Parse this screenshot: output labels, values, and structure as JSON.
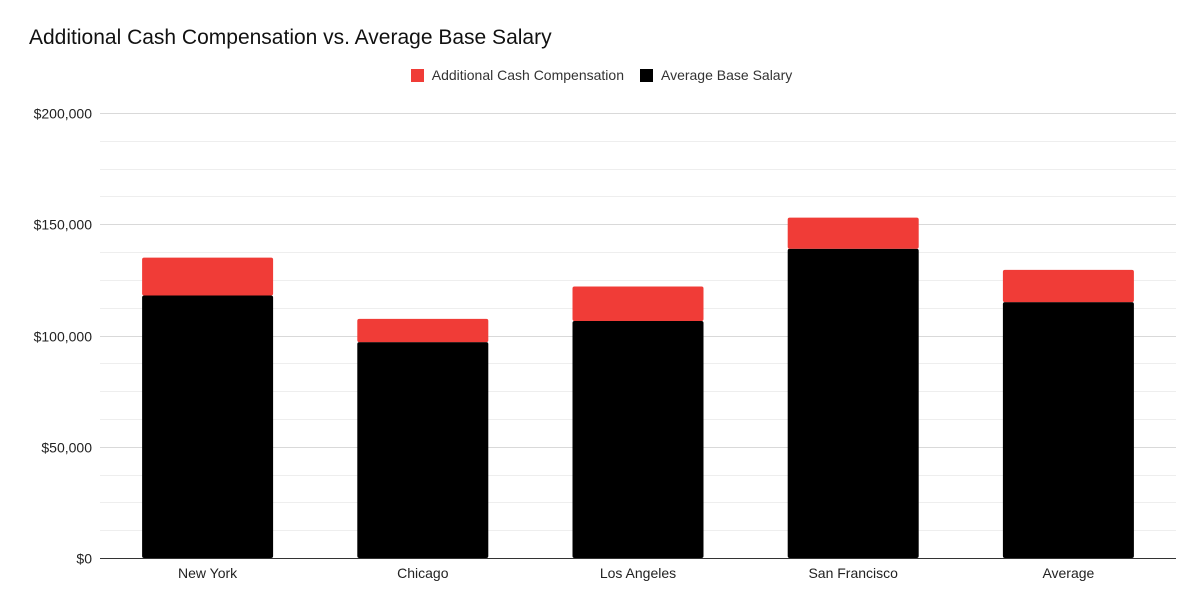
{
  "chart_data": {
    "type": "bar",
    "stacked": true,
    "title": "Additional Cash Compensation vs. Average Base Salary",
    "xlabel": "",
    "ylabel": "",
    "categories": [
      "New York",
      "Chicago",
      "Los Angeles",
      "San Francisco",
      "Average"
    ],
    "series": [
      {
        "name": "Additional Cash Compensation",
        "values": [
          17000,
          10500,
          15500,
          14000,
          14500
        ],
        "color": "#f03c37"
      },
      {
        "name": "Average Base Salary",
        "values": [
          118000,
          97000,
          106500,
          139000,
          115000
        ],
        "color": "#000000"
      }
    ],
    "legend_order": [
      "Additional Cash Compensation",
      "Average Base Salary"
    ],
    "legend_position": "top-center",
    "ylim": [
      0,
      200000
    ],
    "yticks": [
      {
        "value": 0,
        "label": "$0"
      },
      {
        "value": 50000,
        "label": "$50,000"
      },
      {
        "value": 100000,
        "label": "$100,000"
      },
      {
        "value": 150000,
        "label": "$150,000"
      },
      {
        "value": 200000,
        "label": "$200,000"
      }
    ],
    "minor_gridlines_per_major": 3,
    "grid": true
  }
}
